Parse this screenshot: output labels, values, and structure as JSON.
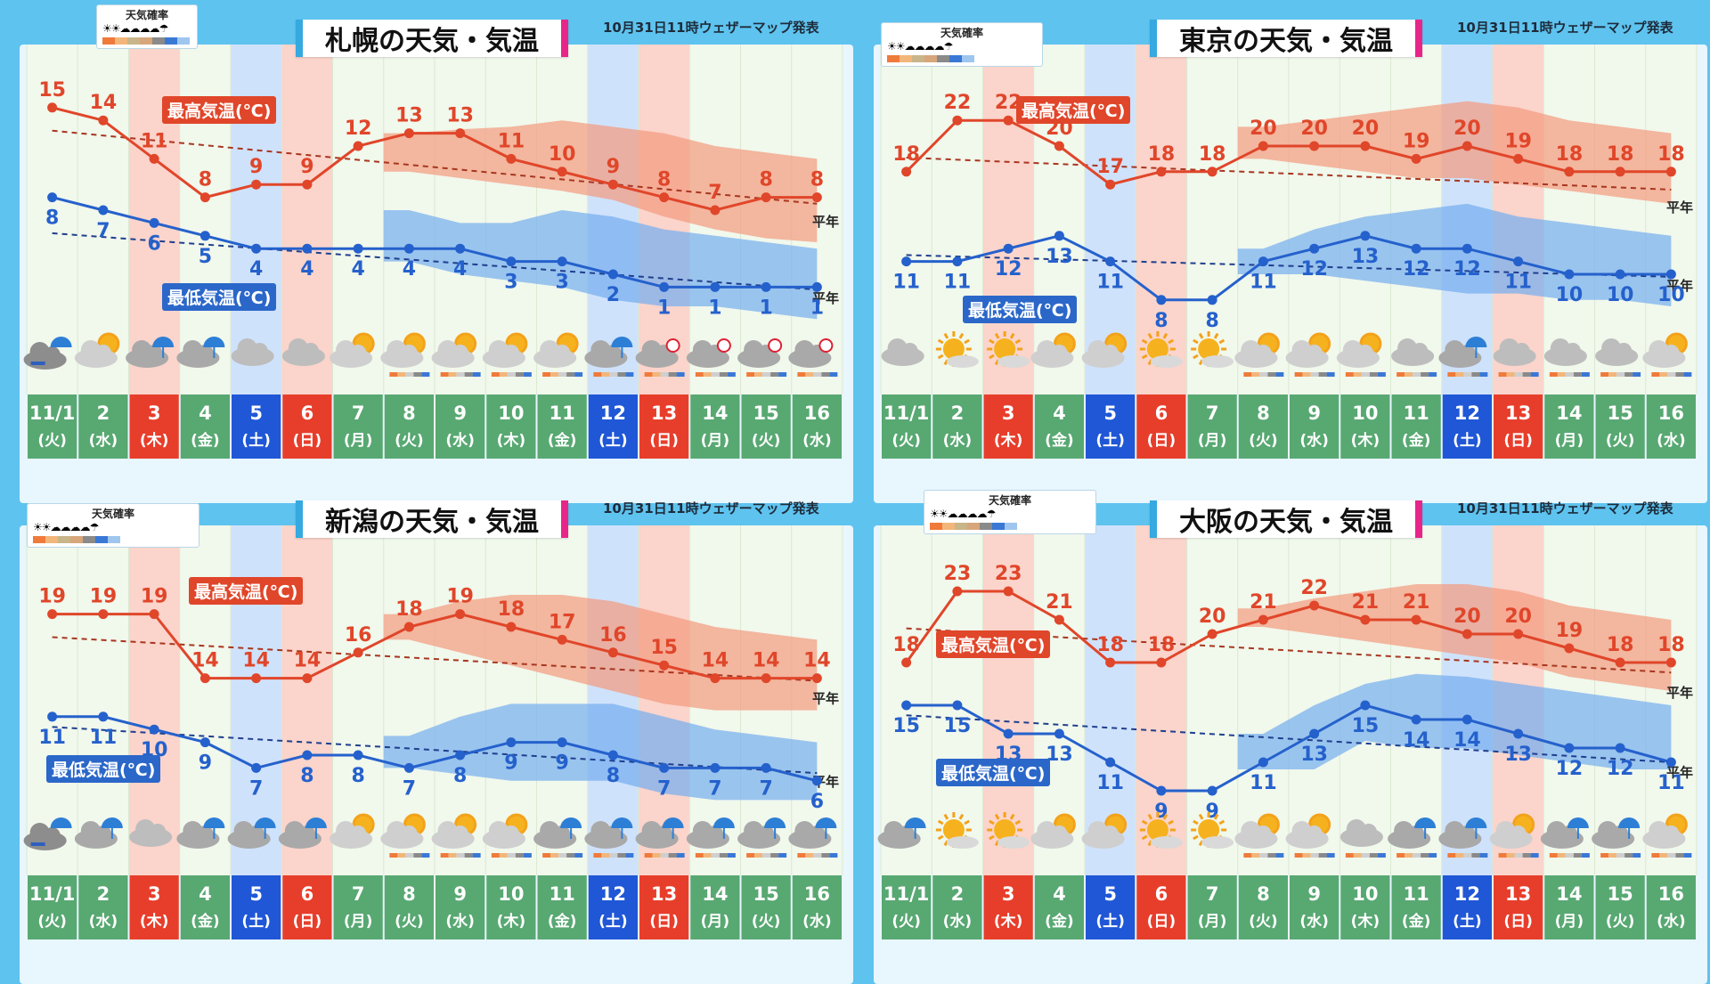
{
  "colors": {
    "high": "#e0462a",
    "low": "#2561cc",
    "high_band": "#f49a7e",
    "low_band": "#73aef0",
    "weekday_bg": "#58a872",
    "sat_bg": "#1f57d6",
    "sun_bg": "#e73e2b",
    "hol_bg": "#e73e2b"
  },
  "legend": {
    "title": "天気確率",
    "strip": [
      "#ef7a3a",
      "#f2b67a",
      "#c9b58a",
      "#d7a67b",
      "#8a8a8a",
      "#3a78d6",
      "#9ec6ee"
    ],
    "icons": "☀☀☁☁☁☁☂"
  },
  "days": [
    {
      "d": "11/1",
      "w": "(火)",
      "type": "weekday"
    },
    {
      "d": "2",
      "w": "(水)",
      "type": "weekday"
    },
    {
      "d": "3",
      "w": "(木)",
      "type": "holiday"
    },
    {
      "d": "4",
      "w": "(金)",
      "type": "weekday"
    },
    {
      "d": "5",
      "w": "(土)",
      "type": "sat"
    },
    {
      "d": "6",
      "w": "(日)",
      "type": "sun"
    },
    {
      "d": "7",
      "w": "(月)",
      "type": "weekday"
    },
    {
      "d": "8",
      "w": "(火)",
      "type": "weekday"
    },
    {
      "d": "9",
      "w": "(水)",
      "type": "weekday"
    },
    {
      "d": "10",
      "w": "(木)",
      "type": "weekday"
    },
    {
      "d": "11",
      "w": "(金)",
      "type": "weekday"
    },
    {
      "d": "12",
      "w": "(土)",
      "type": "sat"
    },
    {
      "d": "13",
      "w": "(日)",
      "type": "sun"
    },
    {
      "d": "14",
      "w": "(月)",
      "type": "weekday"
    },
    {
      "d": "15",
      "w": "(火)",
      "type": "weekday"
    },
    {
      "d": "16",
      "w": "(水)",
      "type": "weekday"
    }
  ],
  "chart_data": [
    {
      "type": "line",
      "title": "札幌の天気・気温",
      "published": "10月31日11時ウェザーマップ発表",
      "high_label": "最高気温(℃)",
      "low_label": "最低気温(℃)",
      "normal_label": "平年",
      "high": [
        15,
        14,
        11,
        8,
        9,
        9,
        12,
        13,
        13,
        11,
        10,
        9,
        8,
        7,
        8,
        8
      ],
      "low": [
        8,
        7,
        6,
        5,
        4,
        4,
        4,
        4,
        4,
        3,
        3,
        2,
        1,
        1,
        1,
        1
      ],
      "high_normal": [
        13.2,
        7.5
      ],
      "low_normal": [
        5.2,
        0.8
      ],
      "high_band_upper": [
        null,
        null,
        null,
        null,
        null,
        null,
        null,
        13,
        13.3,
        13.5,
        14,
        13.5,
        13,
        12,
        11.5,
        11
      ],
      "high_band_lower": [
        null,
        null,
        null,
        null,
        null,
        null,
        null,
        10,
        9.5,
        9,
        8.5,
        7.8,
        6.5,
        5.5,
        4.8,
        4.5
      ],
      "low_band_upper": [
        null,
        null,
        null,
        null,
        null,
        null,
        null,
        7,
        6,
        6,
        7,
        6.5,
        5.5,
        5,
        4.5,
        4
      ],
      "low_band_lower": [
        null,
        null,
        null,
        null,
        null,
        null,
        null,
        3,
        2,
        1.5,
        1,
        0,
        -0.5,
        -0.5,
        -1,
        -1.5
      ],
      "weather": [
        "sleet",
        "sun-cloud",
        "rain",
        "rain",
        "cloud",
        "cloud",
        "sun-cloud",
        "sun-cloud",
        "sun-cloud",
        "sun-cloud",
        "sun-cloud",
        "rain",
        "snow",
        "snow",
        "snow",
        "snow"
      ],
      "prob_bars": [
        false,
        false,
        false,
        false,
        false,
        false,
        false,
        true,
        true,
        true,
        true,
        true,
        true,
        true,
        true,
        true
      ]
    },
    {
      "type": "line",
      "title": "東京の天気・気温",
      "published": "10月31日11時ウェザーマップ発表",
      "high_label": "最高気温(℃)",
      "low_label": "最低気温(℃)",
      "normal_label": "平年",
      "high": [
        18,
        22,
        22,
        20,
        17,
        18,
        18,
        20,
        20,
        20,
        19,
        20,
        19,
        18,
        18,
        18
      ],
      "low": [
        11,
        11,
        12,
        13,
        11,
        8,
        8,
        11,
        12,
        13,
        12,
        12,
        11,
        10,
        10,
        10
      ],
      "high_normal": [
        19.1,
        16.6
      ],
      "low_normal": [
        11.5,
        9.8
      ],
      "high_band_upper": [
        null,
        null,
        null,
        null,
        null,
        null,
        null,
        21.5,
        22,
        22.5,
        23,
        23.5,
        23,
        22,
        21.5,
        21
      ],
      "high_band_lower": [
        null,
        null,
        null,
        null,
        null,
        null,
        null,
        19,
        18.5,
        18,
        17.5,
        17.5,
        17,
        16.5,
        16,
        15.5
      ],
      "low_band_upper": [
        null,
        null,
        null,
        null,
        null,
        null,
        null,
        12,
        13.5,
        14.5,
        15,
        15.5,
        14.5,
        14,
        13.5,
        13
      ],
      "low_band_lower": [
        null,
        null,
        null,
        null,
        null,
        null,
        null,
        10,
        10,
        9.5,
        9,
        8.5,
        8.5,
        8,
        8,
        7.5
      ],
      "weather": [
        "cloud",
        "sun",
        "sun",
        "sun-cloud",
        "sun-cloud",
        "sun",
        "sun",
        "sun-cloud",
        "sun-cloud",
        "sun-cloud",
        "cloud",
        "rain",
        "cloud",
        "cloud",
        "cloud",
        "sun-cloud"
      ],
      "prob_bars": [
        false,
        false,
        false,
        false,
        false,
        false,
        false,
        true,
        true,
        true,
        true,
        true,
        true,
        true,
        true,
        true
      ]
    },
    {
      "type": "line",
      "title": "新潟の天気・気温",
      "published": "10月31日11時ウェザーマップ発表",
      "high_label": "最高気温(℃)",
      "low_label": "最低気温(℃)",
      "normal_label": "平年",
      "high": [
        19,
        19,
        19,
        14,
        14,
        14,
        16,
        18,
        19,
        18,
        17,
        16,
        15,
        14,
        14,
        14
      ],
      "low": [
        11,
        11,
        10,
        9,
        7,
        8,
        8,
        7,
        8,
        9,
        9,
        8,
        7,
        7,
        7,
        6
      ],
      "high_normal": [
        17.2,
        13.8
      ],
      "low_normal": [
        10.2,
        6.6
      ],
      "high_band_upper": [
        null,
        null,
        null,
        null,
        null,
        null,
        null,
        19,
        20,
        20.5,
        20.5,
        20,
        19,
        18,
        17.5,
        17
      ],
      "high_band_lower": [
        null,
        null,
        null,
        null,
        null,
        null,
        null,
        17,
        16,
        15,
        14,
        13,
        12,
        11.5,
        11.5,
        11.5
      ],
      "low_band_upper": [
        null,
        null,
        null,
        null,
        null,
        null,
        null,
        9.5,
        11,
        12,
        12,
        12,
        11,
        10,
        9.5,
        9
      ],
      "low_band_lower": [
        null,
        null,
        null,
        null,
        null,
        null,
        null,
        7,
        6.5,
        6,
        6,
        6,
        5,
        4.5,
        4.5,
        4.5
      ],
      "weather": [
        "sleet",
        "rain",
        "cloud",
        "rain",
        "rain",
        "rain",
        "sun-cloud",
        "sun-cloud",
        "sun-cloud",
        "sun-cloud",
        "rain",
        "rain",
        "rain",
        "rain",
        "rain",
        "rain"
      ],
      "prob_bars": [
        false,
        false,
        false,
        false,
        false,
        false,
        false,
        true,
        true,
        true,
        true,
        true,
        true,
        true,
        true,
        true
      ]
    },
    {
      "type": "line",
      "title": "大阪の天気・気温",
      "published": "10月31日11時ウェザーマップ発表",
      "high_label": "最高気温(℃)",
      "low_label": "最低気温(℃)",
      "normal_label": "平年",
      "high": [
        18,
        23,
        23,
        21,
        18,
        18,
        20,
        21,
        22,
        21,
        21,
        20,
        20,
        19,
        18,
        18
      ],
      "low": [
        15,
        15,
        13,
        13,
        11,
        9,
        9,
        11,
        13,
        15,
        14,
        14,
        13,
        12,
        12,
        11
      ],
      "high_normal": [
        20.4,
        17.3
      ],
      "low_normal": [
        14.3,
        11
      ],
      "high_band_upper": [
        null,
        null,
        null,
        null,
        null,
        null,
        null,
        21.8,
        22.5,
        23,
        23.5,
        23.5,
        23,
        22,
        21.5,
        21
      ],
      "high_band_lower": [
        null,
        null,
        null,
        null,
        null,
        null,
        null,
        20.5,
        20,
        19.5,
        19,
        18.5,
        18,
        17,
        16.5,
        16
      ],
      "low_band_upper": [
        null,
        null,
        null,
        null,
        null,
        null,
        null,
        13,
        15,
        16.5,
        17.2,
        17,
        16.5,
        16,
        15.5,
        15
      ],
      "low_band_lower": [
        null,
        null,
        null,
        null,
        null,
        null,
        null,
        10.5,
        10.5,
        12.5,
        12,
        12,
        11.5,
        11,
        10.5,
        10.5
      ],
      "weather": [
        "rain",
        "sun",
        "sun",
        "sun-cloud",
        "sun-cloud",
        "sun",
        "sun",
        "sun-cloud",
        "sun-cloud",
        "cloud",
        "rain",
        "rain",
        "sun-cloud",
        "rain",
        "rain",
        "sun-cloud"
      ],
      "prob_bars": [
        false,
        false,
        false,
        false,
        false,
        false,
        false,
        true,
        true,
        true,
        true,
        true,
        true,
        true,
        true,
        true
      ]
    }
  ]
}
